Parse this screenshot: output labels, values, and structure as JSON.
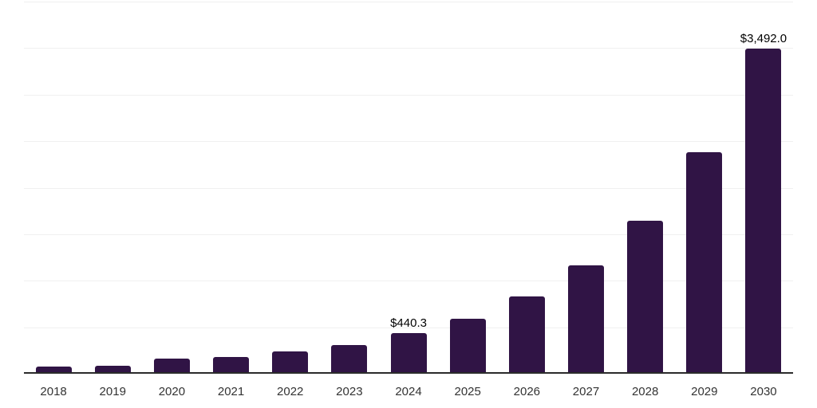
{
  "chart_data": {
    "type": "bar",
    "title": "",
    "xlabel": "",
    "ylabel": "",
    "categories": [
      "2018",
      "2019",
      "2020",
      "2021",
      "2022",
      "2023",
      "2024",
      "2025",
      "2026",
      "2027",
      "2028",
      "2029",
      "2030"
    ],
    "values": [
      77,
      83,
      163,
      180,
      242,
      308,
      440.3,
      591,
      831,
      1165,
      1645,
      2381,
      3492.0
    ],
    "point_labels": [
      "",
      "",
      "",
      "",
      "",
      "",
      "$440.3",
      "",
      "",
      "",
      "",
      "",
      "$3,492.0"
    ],
    "y_axis": {
      "min": 0,
      "max": 4000,
      "step": 500,
      "tick_labels_visible": false
    },
    "legend": "none",
    "grid": "horizontal",
    "colors": {
      "bar_fill": "#301445",
      "gridline": "#f0f0f0",
      "axis_line": "#2b2b2b",
      "value_label_text": "#000000",
      "tick_label_text": "#333333",
      "background": "#ffffff"
    }
  }
}
